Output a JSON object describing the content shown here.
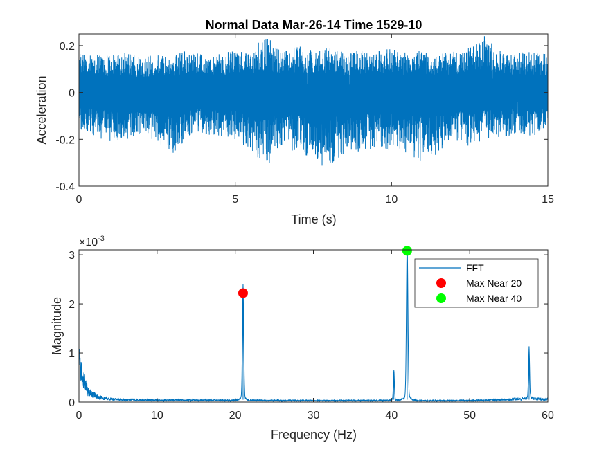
{
  "chart_data": [
    {
      "type": "line",
      "title": "Normal Data Mar-26-14 Time 1529-10",
      "xlabel": "Time (s)",
      "ylabel": "Acceleration",
      "xlim": [
        0,
        15
      ],
      "ylim": [
        -0.4,
        0.25
      ],
      "xticks": [
        0,
        5,
        10,
        15
      ],
      "xtick_labels": [
        "0",
        "5",
        "10",
        "15"
      ],
      "yticks": [
        -0.4,
        -0.2,
        0,
        0.2
      ],
      "ytick_labels": [
        "-0.4",
        "-0.2",
        "0",
        "0.2"
      ],
      "grid": false,
      "series": [
        {
          "color": "#0072BD",
          "x": [
            0,
            0.5,
            1,
            1.5,
            2,
            2.5,
            3,
            3.5,
            4,
            4.5,
            5,
            5.5,
            6,
            6.5,
            7,
            7.5,
            8,
            8.5,
            9,
            9.5,
            10,
            10.5,
            11,
            11.5,
            12,
            12.5,
            13,
            13.5,
            14,
            14.5,
            15
          ],
          "y_max": [
            0.17,
            0.18,
            0.16,
            0.17,
            0.15,
            0.17,
            0.16,
            0.18,
            0.16,
            0.17,
            0.18,
            0.19,
            0.24,
            0.18,
            0.2,
            0.18,
            0.2,
            0.17,
            0.18,
            0.18,
            0.19,
            0.17,
            0.18,
            0.17,
            0.18,
            0.19,
            0.25,
            0.18,
            0.17,
            0.18,
            0.17
          ],
          "y_min": [
            -0.16,
            -0.19,
            -0.21,
            -0.2,
            -0.18,
            -0.21,
            -0.26,
            -0.19,
            -0.18,
            -0.19,
            -0.2,
            -0.25,
            -0.32,
            -0.24,
            -0.26,
            -0.3,
            -0.33,
            -0.26,
            -0.26,
            -0.23,
            -0.25,
            -0.26,
            -0.3,
            -0.26,
            -0.21,
            -0.23,
            -0.2,
            -0.19,
            -0.18,
            -0.19,
            -0.17
          ]
        }
      ]
    },
    {
      "type": "line",
      "xlabel": "Frequency (Hz)",
      "ylabel": "Magnitude",
      "y_exponent_label": "×10",
      "y_exponent": "-3",
      "xlim": [
        0,
        60
      ],
      "ylim": [
        0,
        3.1
      ],
      "xticks": [
        0,
        10,
        20,
        30,
        40,
        50,
        60
      ],
      "xtick_labels": [
        "0",
        "10",
        "20",
        "30",
        "40",
        "50",
        "60"
      ],
      "yticks": [
        0,
        1,
        2,
        3
      ],
      "ytick_labels": [
        "0",
        "1",
        "2",
        "3"
      ],
      "grid": false,
      "legend_position": "top-right",
      "series": [
        {
          "name": "FFT",
          "color": "#0072BD",
          "baseline_points": [
            [
              0,
              0.85
            ],
            [
              0.3,
              0.6
            ],
            [
              0.7,
              0.42
            ],
            [
              1.2,
              0.2
            ],
            [
              2,
              0.14
            ],
            [
              3,
              0.08
            ],
            [
              5,
              0.05
            ],
            [
              10,
              0.04
            ],
            [
              20,
              0.035
            ],
            [
              30,
              0.03
            ],
            [
              40,
              0.03
            ],
            [
              50,
              0.03
            ],
            [
              55,
              0.05
            ],
            [
              57,
              0.07
            ],
            [
              60,
              0.06
            ]
          ],
          "peaks": [
            {
              "x": 21.0,
              "y": 2.22,
              "width": 0.35
            },
            {
              "x": 40.3,
              "y": 0.58,
              "width": 0.3
            },
            {
              "x": 42.0,
              "y": 3.08,
              "width": 0.4
            },
            {
              "x": 57.6,
              "y": 0.98,
              "width": 0.3
            }
          ]
        },
        {
          "name": "Max Near 20",
          "color": "#FF0000",
          "marker": "circle",
          "points": [
            [
              21.0,
              2.22
            ]
          ]
        },
        {
          "name": "Max Near 40",
          "color": "#00FF00",
          "marker": "circle",
          "points": [
            [
              42.0,
              3.08
            ]
          ]
        }
      ]
    }
  ]
}
